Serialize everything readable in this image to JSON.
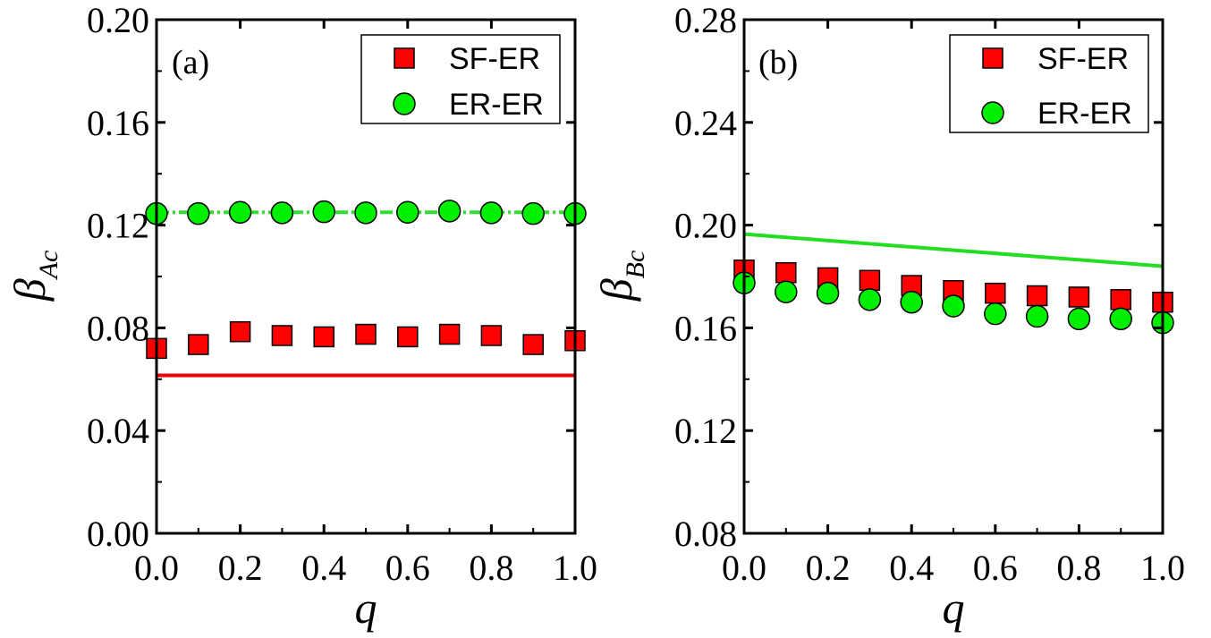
{
  "chart_data": [
    {
      "type": "scatter",
      "panel_label": "(a)",
      "xlabel": "q",
      "ylabel": {
        "symbol": "β",
        "subscript": "Ac"
      },
      "xlim": [
        0.0,
        1.0
      ],
      "ylim": [
        0.0,
        0.2
      ],
      "x_ticks": [
        "0.0",
        "0.2",
        "0.4",
        "0.6",
        "0.8",
        "1.0"
      ],
      "y_ticks": [
        "0.00",
        "0.04",
        "0.08",
        "0.12",
        "0.16",
        "0.20"
      ],
      "legend_position": "top-right",
      "x": [
        0.0,
        0.1,
        0.2,
        0.3,
        0.4,
        0.5,
        0.6,
        0.7,
        0.8,
        0.9,
        1.0
      ],
      "series": [
        {
          "name": "SF-ER",
          "marker": "square",
          "color": "#ff0000",
          "values": [
            0.072,
            0.0735,
            0.0785,
            0.077,
            0.0765,
            0.0775,
            0.0765,
            0.0775,
            0.077,
            0.0735,
            0.075
          ]
        },
        {
          "name": "ER-ER",
          "marker": "circle",
          "color": "#00ee00",
          "values": [
            0.1245,
            0.1245,
            0.125,
            0.1248,
            0.1252,
            0.1248,
            0.125,
            0.1255,
            0.1248,
            0.1245,
            0.1245
          ]
        }
      ],
      "theory_lines": [
        {
          "color": "#ee0000",
          "style": "solid",
          "x": [
            0.0,
            1.0
          ],
          "y": [
            0.0615,
            0.0615
          ]
        },
        {
          "color": "#33dd33",
          "style": "dashed",
          "x": [
            0.0,
            1.0
          ],
          "y": [
            0.125,
            0.125
          ]
        }
      ]
    },
    {
      "type": "scatter",
      "panel_label": "(b)",
      "xlabel": "q",
      "ylabel": {
        "symbol": "β",
        "subscript": "Bc"
      },
      "xlim": [
        0.0,
        1.0
      ],
      "ylim": [
        0.08,
        0.28
      ],
      "x_ticks": [
        "0.0",
        "0.2",
        "0.4",
        "0.6",
        "0.8",
        "1.0"
      ],
      "y_ticks": [
        "0.08",
        "0.12",
        "0.16",
        "0.20",
        "0.24",
        "0.28"
      ],
      "legend_position": "top-right",
      "x": [
        0.0,
        0.1,
        0.2,
        0.3,
        0.4,
        0.5,
        0.6,
        0.7,
        0.8,
        0.9,
        1.0
      ],
      "series": [
        {
          "name": "SF-ER",
          "marker": "square",
          "color": "#ff0000",
          "values": [
            0.1825,
            0.1815,
            0.1795,
            0.1785,
            0.1765,
            0.1745,
            0.1735,
            0.1725,
            0.172,
            0.171,
            0.17
          ]
        },
        {
          "name": "ER-ER",
          "marker": "circle",
          "color": "#00ee00",
          "values": [
            0.1775,
            0.174,
            0.1735,
            0.171,
            0.17,
            0.1685,
            0.1655,
            0.1645,
            0.1635,
            0.1635,
            0.162
          ]
        }
      ],
      "theory_lines": [
        {
          "color": "#22dd22",
          "style": "solid",
          "x": [
            0.0,
            1.0
          ],
          "y": [
            0.1965,
            0.184
          ]
        }
      ]
    }
  ]
}
